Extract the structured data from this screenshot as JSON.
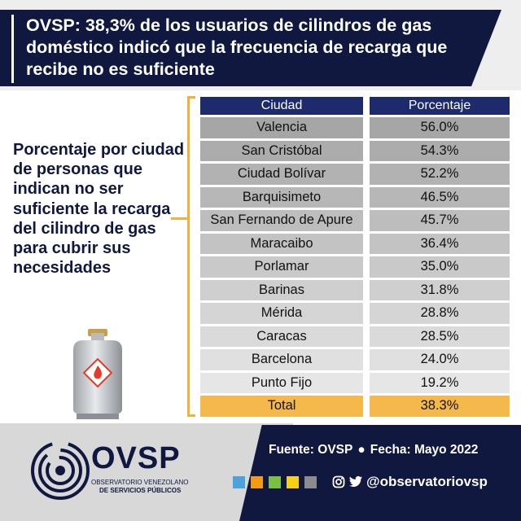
{
  "header": {
    "headline": "OVSP: 38,3% de los usuarios de cilindros de gas doméstico indicó que la frecuencia de recarga que recibe no es suficiente"
  },
  "description": "Porcentaje por ciudad de personas que indican no ser suficiente la recarga del cilindro de gas para cubrir sus necesidades",
  "table": {
    "headers": [
      "Ciudad",
      "Porcentaje"
    ],
    "rows": [
      {
        "city": "Valencia",
        "pct": "56.0%"
      },
      {
        "city": "San Cristóbal",
        "pct": "54.3%"
      },
      {
        "city": "Ciudad Bolívar",
        "pct": "52.2%"
      },
      {
        "city": "Barquisimeto",
        "pct": "46.5%"
      },
      {
        "city": "San Fernando de Apure",
        "pct": "45.7%"
      },
      {
        "city": "Maracaibo",
        "pct": "36.4%"
      },
      {
        "city": "Porlamar",
        "pct": "35.0%"
      },
      {
        "city": "Barinas",
        "pct": "31.8%"
      },
      {
        "city": "Mérida",
        "pct": "28.8%"
      },
      {
        "city": "Caracas",
        "pct": "28.5%"
      },
      {
        "city": "Barcelona",
        "pct": "24.0%"
      },
      {
        "city": "Punto Fijo",
        "pct": "19.2%"
      }
    ],
    "total": {
      "city": "Total",
      "pct": "38.3%"
    }
  },
  "footer": {
    "source": "Fuente: OVSP",
    "date": "Fecha: Mayo 2022",
    "handle": "@observatoriovsp",
    "logo_name": "OVSP",
    "logo_line1": "OBSERVATORIO VENEZOLANO",
    "logo_line2": "DE SERVICIOS PÚBLICOS"
  },
  "colors": {
    "navy": "#10183f",
    "header_cell": "#1d2a6b",
    "accent": "#f0b23a",
    "total_row": "#f5b84a",
    "swatches": [
      "#4aa3df",
      "#f39c12",
      "#7ac143",
      "#f7d117",
      "#8c8c8c"
    ],
    "row_gradient_dark": "#a6a6a6",
    "row_gradient_light": "#e6e6e6"
  },
  "icons": [
    "gas-cylinder-icon",
    "flame-icon",
    "instagram-icon",
    "twitter-icon",
    "ovsp-logo-icon"
  ]
}
